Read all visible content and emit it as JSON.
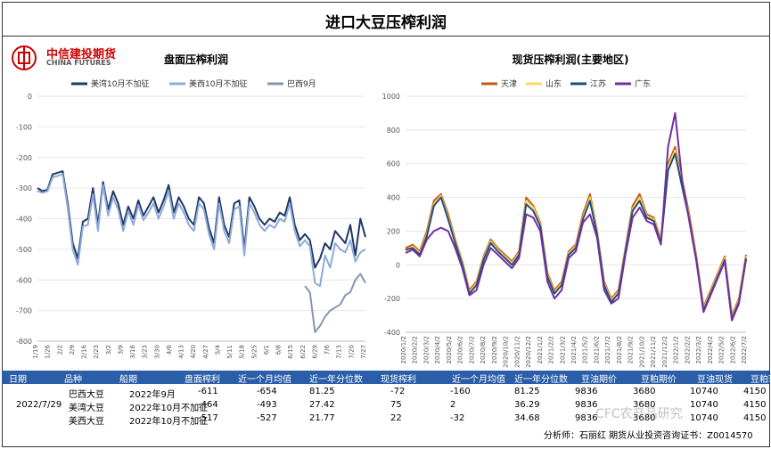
{
  "header": {
    "title": "进口大豆压榨利润"
  },
  "logo": {
    "cn": "中信建投期货",
    "en": "CHINA FUTURES"
  },
  "chart_data": [
    {
      "type": "line",
      "title": "盘面压榨利润",
      "ylim": [
        -800,
        0
      ],
      "yticks": [
        "0",
        "-100",
        "-200",
        "-300",
        "-400",
        "-500",
        "-600",
        "-700",
        "-800"
      ],
      "xticks": [
        "1/19",
        "1/26",
        "2/2",
        "2/9",
        "2/16",
        "2/23",
        "3/2",
        "3/9",
        "3/16",
        "3/23",
        "3/30",
        "4/6",
        "4/13",
        "4/20",
        "4/27",
        "5/4",
        "5/11",
        "5/18",
        "5/25",
        "6/1",
        "6/8",
        "6/15",
        "6/22",
        "6/29",
        "7/6",
        "7/13",
        "7/20",
        "7/27"
      ],
      "series": [
        {
          "name": "美湾10月不加征",
          "color": "#1f3864",
          "values": [
            -300,
            -310,
            -305,
            -255,
            -250,
            -245,
            -350,
            -480,
            -530,
            -410,
            -400,
            -300,
            -420,
            -280,
            -370,
            -310,
            -350,
            -420,
            -360,
            -400,
            -340,
            -390,
            -360,
            -330,
            -380,
            -340,
            -290,
            -380,
            -330,
            -360,
            -400,
            -420,
            -330,
            -350,
            -430,
            -480,
            -330,
            -420,
            -460,
            -350,
            -340,
            -500,
            -330,
            -360,
            -400,
            -420,
            -400,
            -410,
            -380,
            -390,
            -330,
            -420,
            -470,
            -450,
            -470,
            -560,
            -530,
            -480,
            -500,
            -440,
            -460,
            -480,
            -420,
            -520,
            -400,
            -460
          ]
        },
        {
          "name": "美西10月不加征",
          "color": "#8eaadb",
          "values": [
            -310,
            -315,
            -310,
            -265,
            -260,
            -255,
            -365,
            -500,
            -550,
            -425,
            -420,
            -320,
            -440,
            -290,
            -390,
            -330,
            -370,
            -440,
            -375,
            -420,
            -355,
            -405,
            -380,
            -350,
            -400,
            -360,
            -310,
            -400,
            -350,
            -380,
            -420,
            -440,
            -350,
            -370,
            -450,
            -500,
            -350,
            -440,
            -480,
            -370,
            -360,
            -520,
            -350,
            -380,
            -420,
            -440,
            -420,
            -430,
            -400,
            -410,
            -350,
            -440,
            -490,
            -470,
            -490,
            -610,
            -620,
            -520,
            -560,
            -480,
            -500,
            -510,
            -470,
            -540,
            -510,
            -500
          ]
        },
        {
          "name": "巴西9月",
          "color": "#8497b0",
          "values": [
            null,
            null,
            null,
            null,
            null,
            null,
            null,
            null,
            null,
            null,
            null,
            null,
            null,
            null,
            null,
            null,
            null,
            null,
            null,
            null,
            null,
            null,
            null,
            null,
            null,
            null,
            null,
            null,
            null,
            null,
            null,
            null,
            null,
            null,
            null,
            null,
            null,
            null,
            null,
            null,
            null,
            null,
            null,
            null,
            null,
            null,
            null,
            null,
            null,
            null,
            null,
            null,
            null,
            -620,
            -640,
            -770,
            -750,
            -720,
            -700,
            -690,
            -680,
            -650,
            -640,
            -600,
            -580,
            -610
          ]
        }
      ]
    },
    {
      "type": "line",
      "title": "现货压榨利润(主要地区)",
      "ylim": [
        -400,
        1000
      ],
      "yticks": [
        "1000",
        "800",
        "600",
        "400",
        "200",
        "0",
        "-200",
        "-400"
      ],
      "xticks": [
        "2020/1/2",
        "2020/2/2",
        "2020/3/2",
        "2020/4/2",
        "2020/5/2",
        "2020/6/2",
        "2020/7/2",
        "2020/8/2",
        "2020/9/2",
        "2020/10/2",
        "2020/11/2",
        "2020/12/2",
        "2021/1/2",
        "2021/2/2",
        "2021/3/2",
        "2021/4/2",
        "2021/5/2",
        "2021/6/2",
        "2021/7/2",
        "2021/8/2",
        "2021/9/2",
        "2021/10/2",
        "2021/11/2",
        "2021/12/2",
        "2022/1/2",
        "2022/2/2",
        "2022/3/2",
        "2022/4/2",
        "2022/5/2",
        "2022/6/2",
        "2022/7/2"
      ],
      "series": [
        {
          "name": "天津",
          "color": "#c55a11",
          "values": [
            100,
            120,
            80,
            200,
            380,
            420,
            300,
            150,
            20,
            -150,
            -100,
            50,
            150,
            100,
            60,
            20,
            80,
            400,
            350,
            250,
            -50,
            -150,
            -100,
            80,
            120,
            300,
            420,
            200,
            -100,
            -200,
            -150,
            100,
            350,
            420,
            300,
            280,
            150,
            600,
            700,
            500,
            300,
            50,
            -250,
            -150,
            -50,
            50,
            -300,
            -200,
            60
          ]
        },
        {
          "name": "山东",
          "color": "#ffd966",
          "values": [
            80,
            110,
            70,
            180,
            360,
            410,
            280,
            140,
            10,
            -160,
            -110,
            40,
            140,
            90,
            50,
            10,
            70,
            380,
            340,
            240,
            -60,
            -160,
            -110,
            70,
            110,
            280,
            400,
            190,
            -110,
            -210,
            -160,
            90,
            330,
            400,
            290,
            270,
            140,
            580,
            680,
            480,
            280,
            40,
            -260,
            -160,
            -60,
            40,
            -310,
            -210,
            50
          ]
        },
        {
          "name": "江苏",
          "color": "#1f4e79",
          "values": [
            90,
            100,
            60,
            170,
            350,
            400,
            270,
            130,
            0,
            -170,
            -120,
            30,
            130,
            80,
            40,
            0,
            60,
            360,
            320,
            230,
            -70,
            -170,
            -120,
            60,
            100,
            270,
            380,
            180,
            -120,
            -220,
            -170,
            80,
            320,
            380,
            280,
            260,
            130,
            560,
            660,
            460,
            270,
            30,
            -270,
            -170,
            -70,
            30,
            -320,
            -220,
            40
          ]
        },
        {
          "name": "广东",
          "color": "#7030a0",
          "values": [
            70,
            90,
            50,
            150,
            200,
            220,
            200,
            100,
            -20,
            -180,
            -150,
            0,
            100,
            60,
            20,
            -20,
            40,
            300,
            280,
            200,
            -100,
            -200,
            -150,
            40,
            80,
            250,
            300,
            160,
            -150,
            -230,
            -200,
            60,
            280,
            340,
            260,
            240,
            120,
            700,
            900,
            500,
            260,
            20,
            -280,
            -180,
            -80,
            20,
            -330,
            -230,
            30
          ]
        }
      ]
    }
  ],
  "table": {
    "headers": [
      "日期",
      "品种",
      "船期",
      "盘面榨利",
      "近一个月均值",
      "近一年分位数",
      "现货榨利",
      "近一个月均值",
      "近一年分位数",
      "豆油期价",
      "豆粕期价",
      "豆油现货",
      "豆粕现货"
    ],
    "date": "2022/7/29",
    "rows": [
      [
        "巴西大豆",
        "2022年9月",
        "-611",
        "-654",
        "81.25",
        "-72",
        "-160",
        "81.25",
        "9836",
        "3680",
        "10740",
        "4150"
      ],
      [
        "美湾大豆",
        "2022年10月不加征",
        "-464",
        "-493",
        "27.42",
        "75",
        "2",
        "36.29",
        "9836",
        "3680",
        "10740",
        "4150"
      ],
      [
        "美西大豆",
        "2022年10月不加征",
        "-517",
        "-527",
        "21.77",
        "22",
        "-32",
        "34.68",
        "9836",
        "3680",
        "10740",
        "4150"
      ]
    ]
  },
  "footer": {
    "analyst": "分析师：石丽红 期货从业投资咨询证书：Z0014570"
  },
  "watermark": "CFC农产品研究"
}
